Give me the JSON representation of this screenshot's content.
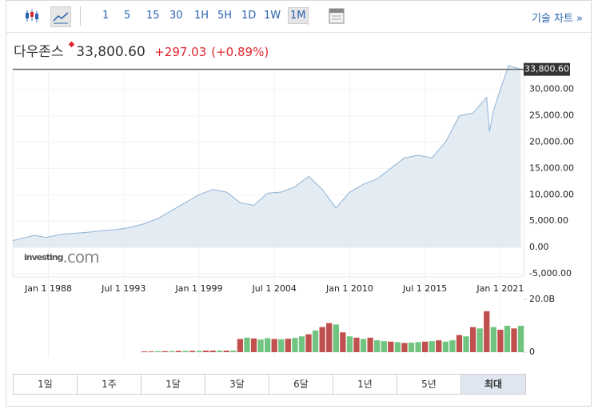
{
  "toolbar": {
    "intervals": [
      "1",
      "5",
      "15",
      "30",
      "1H",
      "5H",
      "1D",
      "1W",
      "1M"
    ],
    "selected": 8,
    "tech_chart": "기술 차트 »"
  },
  "header": {
    "name": "다우존스",
    "price": "33,800.60",
    "change": "+297.03",
    "change_pct": "(+0.89%)"
  },
  "watermark": [
    "investing",
    ".com"
  ],
  "chart_data": [
    {
      "type": "area",
      "color": "#8fb3d6",
      "fill": "#e3ebf3",
      "x": [
        1985.4,
        1986,
        1987,
        1987.8,
        1988,
        1989,
        1990,
        1991,
        1992,
        1993,
        1994,
        1995,
        1996,
        1997,
        1998,
        1999,
        2000,
        2001,
        2002,
        2003,
        2004,
        2005,
        2006,
        2007,
        2008,
        2009,
        2010,
        2011,
        2012,
        2013,
        2014,
        2015,
        2016,
        2017,
        2018,
        2019,
        2020,
        2020.2,
        2020.5,
        2021,
        2021.6,
        2022.5
      ],
      "values": [
        1300,
        1700,
        2300,
        1900,
        2000,
        2500,
        2700,
        2900,
        3200,
        3400,
        3800,
        4500,
        5500,
        7000,
        8500,
        10000,
        11000,
        10500,
        8500,
        8000,
        10300,
        10500,
        11500,
        13500,
        11000,
        7500,
        10500,
        12000,
        13000,
        15000,
        17000,
        17500,
        17000,
        20000,
        25000,
        25500,
        28500,
        22000,
        26000,
        30000,
        34500,
        33800.6
      ],
      "xlim": [
        1985.4,
        2022.7
      ],
      "ylim": [
        -5600,
        33900
      ],
      "xticks": [
        {
          "value": 1988,
          "label": "Jan 1 1988"
        },
        {
          "value": 1993.5,
          "label": "Jul 1 1993"
        },
        {
          "value": 1999,
          "label": "Jan 1 1999"
        },
        {
          "value": 2004.5,
          "label": "Jul 1 2004"
        },
        {
          "value": 2010,
          "label": "Jan 1 2010"
        },
        {
          "value": 2015.5,
          "label": "Jul 1 2015"
        },
        {
          "value": 2021,
          "label": "Jan 1 2021"
        }
      ],
      "yticks": [
        {
          "value": 30000,
          "label": "30,000.00"
        },
        {
          "value": 25000,
          "label": "25,000.00"
        },
        {
          "value": 20000,
          "label": "20,000.00"
        },
        {
          "value": 15000,
          "label": "15,000.00"
        },
        {
          "value": 10000,
          "label": "10,000.00"
        },
        {
          "value": 5000,
          "label": "5,000.00"
        },
        {
          "value": 0,
          "label": "0.00"
        },
        {
          "value": -5000,
          "label": "-5,000.00"
        }
      ]
    },
    {
      "type": "bar",
      "x": [
        1995,
        1995.5,
        1996,
        1996.5,
        1997,
        1997.5,
        1998,
        1998.5,
        1999,
        1999.5,
        2000,
        2000.5,
        2001,
        2001.5,
        2002,
        2002.5,
        2003,
        2003.5,
        2004,
        2004.5,
        2005,
        2005.5,
        2006,
        2006.5,
        2007,
        2007.5,
        2008,
        2008.5,
        2009,
        2009.5,
        2010,
        2010.5,
        2011,
        2011.5,
        2012,
        2012.5,
        2013,
        2013.5,
        2014,
        2014.5,
        2015,
        2015.5,
        2016,
        2016.5,
        2017,
        2017.5,
        2018,
        2018.5,
        2019,
        2019.5,
        2020,
        2020.5,
        2021,
        2021.5,
        2022,
        2022.5
      ],
      "values": [
        0.3,
        0.3,
        0.4,
        0.4,
        0.4,
        0.5,
        0.5,
        0.5,
        0.5,
        0.6,
        0.6,
        0.6,
        0.6,
        0.6,
        5.0,
        5.5,
        5.2,
        4.8,
        5.3,
        5.0,
        4.9,
        5.1,
        5.4,
        6.0,
        6.8,
        8.2,
        9.5,
        11.0,
        10.5,
        7.5,
        6.0,
        5.5,
        5.0,
        5.5,
        4.5,
        4.2,
        4.0,
        3.8,
        3.5,
        3.6,
        3.8,
        4.0,
        4.2,
        4.5,
        4.0,
        4.5,
        6.5,
        6.0,
        9.5,
        9.0,
        15.5,
        9.5,
        8.5,
        10.0,
        9.0,
        10.0
      ],
      "colors": [
        "#c0504d",
        "#c0504d",
        "#70c47f",
        "#c0504d",
        "#70c47f",
        "#c0504d",
        "#70c47f",
        "#c0504d",
        "#70c47f",
        "#c0504d",
        "#c0504d",
        "#70c47f",
        "#c0504d",
        "#70c47f",
        "#c0504d",
        "#70c47f",
        "#c0504d",
        "#70c47f",
        "#70c47f",
        "#c0504d",
        "#70c47f",
        "#c0504d",
        "#70c47f",
        "#70c47f",
        "#c0504d",
        "#70c47f",
        "#c0504d",
        "#c0504d",
        "#70c47f",
        "#c0504d",
        "#70c47f",
        "#c0504d",
        "#70c47f",
        "#c0504d",
        "#70c47f",
        "#70c47f",
        "#c0504d",
        "#70c47f",
        "#c0504d",
        "#70c47f",
        "#70c47f",
        "#c0504d",
        "#70c47f",
        "#c0504d",
        "#70c47f",
        "#70c47f",
        "#c0504d",
        "#70c47f",
        "#c0504d",
        "#70c47f",
        "#c0504d",
        "#70c47f",
        "#c0504d",
        "#70c47f",
        "#c0504d",
        "#70c47f"
      ],
      "xlim": [
        1985.4,
        2022.7
      ],
      "ylim": [
        -1.8,
        20.6
      ],
      "yticks": [
        {
          "value": 20,
          "label": "20.0B"
        },
        0
      ]
    }
  ],
  "ranges": [
    "1일",
    "1주",
    "1달",
    "3달",
    "6달",
    "1년",
    "5년",
    "최대"
  ]
}
